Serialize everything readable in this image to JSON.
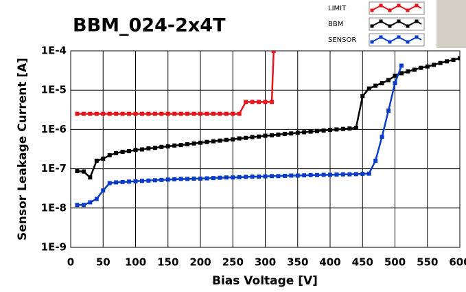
{
  "chart_data": {
    "type": "line",
    "title": "BBM_024-2x4T",
    "x_label": "Bias Voltage [V]",
    "y_label": "Sensor Leakage Current [A]",
    "xlim": [
      0,
      600
    ],
    "xticks": [
      0,
      50,
      100,
      150,
      200,
      250,
      300,
      350,
      400,
      450,
      500,
      550,
      600
    ],
    "ylim": [
      1e-09,
      0.0001
    ],
    "yticks": [
      {
        "value": 1e-09,
        "label": "1E-9"
      },
      {
        "value": 1e-08,
        "label": "1E-8"
      },
      {
        "value": 1e-07,
        "label": "1E-7"
      },
      {
        "value": 1e-06,
        "label": "1E-6"
      },
      {
        "value": 1e-05,
        "label": "1E-5"
      },
      {
        "value": 0.0001,
        "label": "1E-4"
      }
    ],
    "log_y": true,
    "grid": true,
    "series": [
      {
        "name": "LIMIT",
        "color": "#e8141c",
        "x": [
          10,
          20,
          30,
          40,
          50,
          60,
          70,
          80,
          90,
          100,
          110,
          120,
          130,
          140,
          150,
          160,
          170,
          180,
          190,
          200,
          210,
          220,
          230,
          240,
          250,
          260,
          270,
          280,
          290,
          300,
          310,
          313
        ],
        "values": [
          2.5e-06,
          2.5e-06,
          2.5e-06,
          2.5e-06,
          2.5e-06,
          2.5e-06,
          2.5e-06,
          2.5e-06,
          2.5e-06,
          2.5e-06,
          2.5e-06,
          2.5e-06,
          2.5e-06,
          2.5e-06,
          2.5e-06,
          2.5e-06,
          2.5e-06,
          2.5e-06,
          2.5e-06,
          2.5e-06,
          2.5e-06,
          2.5e-06,
          2.5e-06,
          2.5e-06,
          2.5e-06,
          2.5e-06,
          5e-06,
          5e-06,
          5e-06,
          5e-06,
          5e-06,
          0.0001
        ]
      },
      {
        "name": "BBM",
        "color": "#000000",
        "x": [
          10,
          20,
          30,
          40,
          50,
          60,
          70,
          80,
          90,
          100,
          110,
          120,
          130,
          140,
          150,
          160,
          170,
          180,
          190,
          200,
          210,
          220,
          230,
          240,
          250,
          260,
          270,
          280,
          290,
          300,
          310,
          320,
          330,
          340,
          350,
          360,
          370,
          380,
          390,
          400,
          410,
          420,
          430,
          440,
          450,
          460,
          470,
          480,
          490,
          500,
          510,
          520,
          530,
          540,
          550,
          560,
          570,
          580,
          590,
          600
        ],
        "values": [
          8.7e-08,
          8.5e-08,
          6e-08,
          1.6e-07,
          1.8e-07,
          2.2e-07,
          2.5e-07,
          2.7e-07,
          2.8e-07,
          3e-07,
          3.1e-07,
          3.3e-07,
          3.4e-07,
          3.6e-07,
          3.7e-07,
          3.9e-07,
          4e-07,
          4.2e-07,
          4.4e-07,
          4.6e-07,
          4.8e-07,
          5e-07,
          5.2e-07,
          5.4e-07,
          5.6e-07,
          5.9e-07,
          6.1e-07,
          6.4e-07,
          6.6e-07,
          6.9e-07,
          7.1e-07,
          7.4e-07,
          7.7e-07,
          7.9e-07,
          8.2e-07,
          8.5e-07,
          8.8e-07,
          9.1e-07,
          9.4e-07,
          9.7e-07,
          1e-06,
          1.03e-06,
          1.06e-06,
          1.1e-06,
          7e-06,
          1.1e-05,
          1.3e-05,
          1.5e-05,
          1.8e-05,
          2.3e-05,
          2.7e-05,
          3e-05,
          3.3e-05,
          3.7e-05,
          4e-05,
          4.4e-05,
          4.9e-05,
          5.4e-05,
          5.9e-05,
          6.5e-05
        ]
      },
      {
        "name": "SENSOR",
        "color": "#0a3cc8",
        "x": [
          10,
          20,
          30,
          40,
          50,
          60,
          70,
          80,
          90,
          100,
          110,
          120,
          130,
          140,
          150,
          160,
          170,
          180,
          190,
          200,
          210,
          220,
          230,
          240,
          250,
          260,
          270,
          280,
          290,
          300,
          310,
          320,
          330,
          340,
          350,
          360,
          370,
          380,
          390,
          400,
          410,
          420,
          430,
          440,
          450,
          460,
          470,
          480,
          490,
          500,
          510
        ],
        "values": [
          1.2e-08,
          1.2e-08,
          1.4e-08,
          1.7e-08,
          2.8e-08,
          4.3e-08,
          4.5e-08,
          4.6e-08,
          4.7e-08,
          4.8e-08,
          4.9e-08,
          5e-08,
          5.1e-08,
          5.2e-08,
          5.3e-08,
          5.4e-08,
          5.5e-08,
          5.5e-08,
          5.6e-08,
          5.6e-08,
          5.7e-08,
          5.8e-08,
          5.9e-08,
          6e-08,
          6e-08,
          6.1e-08,
          6.2e-08,
          6.3e-08,
          6.3e-08,
          6.4e-08,
          6.5e-08,
          6.5e-08,
          6.6e-08,
          6.7e-08,
          6.7e-08,
          6.8e-08,
          6.9e-08,
          6.9e-08,
          7e-08,
          7e-08,
          7.1e-08,
          7.2e-08,
          7.2e-08,
          7.3e-08,
          7.4e-08,
          7.5e-08,
          1.6e-07,
          6.5e-07,
          3e-06,
          1.5e-05,
          4.2e-05
        ]
      }
    ]
  }
}
